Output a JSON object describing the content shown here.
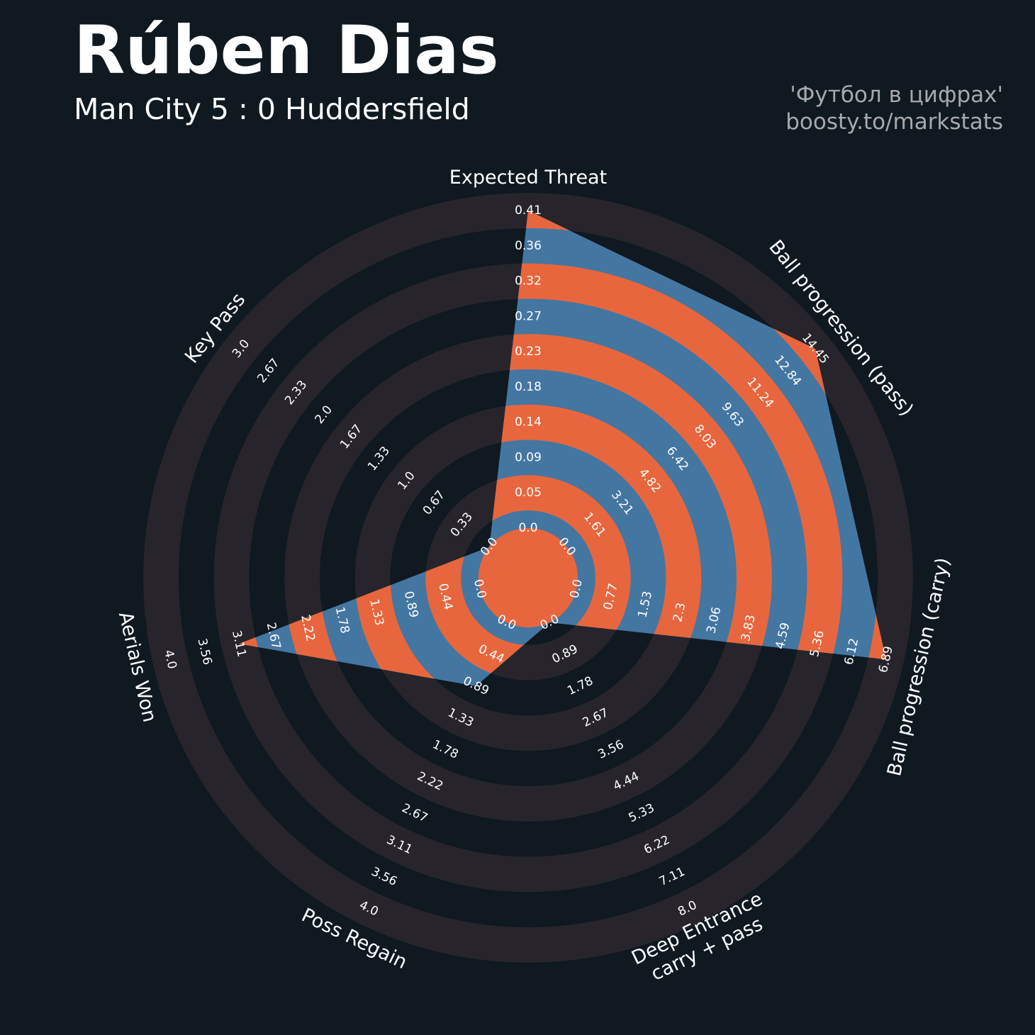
{
  "title": "Rúben Dias",
  "subtitle": "Man City 5 : 0 Huddersfield",
  "credit": {
    "line1": "'Футбол в цифрах'",
    "line2": "boosty.to/markstats"
  },
  "colors": {
    "background": "#101820",
    "ring_band": "#27252b",
    "fill_primary": "#4476a2",
    "fill_secondary": "#e8663d",
    "label_text": "#ffffff",
    "credit_text": "#a7a9ac"
  },
  "chart_data": {
    "type": "radar",
    "title": "Rúben Dias",
    "subtitle": "Man City 5 : 0 Huddersfield",
    "grid": "alternating concentric bands",
    "axes": [
      {
        "label": "Expected Threat",
        "value": 0.41,
        "ticks": [
          "0.0",
          "0.05",
          "0.09",
          "0.14",
          "0.18",
          "0.23",
          "0.27",
          "0.32",
          "0.36",
          "0.41"
        ]
      },
      {
        "label": "Ball progression (pass)",
        "value": 14.45,
        "ticks": [
          "0.0",
          "1.61",
          "3.21",
          "4.82",
          "6.42",
          "8.03",
          "9.63",
          "11.24",
          "12.84",
          "14.45"
        ]
      },
      {
        "label": "Ball progression (carry)",
        "value": 6.89,
        "ticks": [
          "0.0",
          "0.77",
          "1.53",
          "2.3",
          "3.06",
          "3.83",
          "4.59",
          "5.36",
          "6.12",
          "6.89"
        ]
      },
      {
        "label": "Deep Entrance\ncarry + pass",
        "value": 0.0,
        "ticks": [
          "0.0",
          "0.89",
          "1.78",
          "2.67",
          "3.56",
          "4.44",
          "5.33",
          "6.22",
          "7.11",
          "8.0"
        ]
      },
      {
        "label": "Poss Regain",
        "value": 0.89,
        "ticks": [
          "0.0",
          "0.44",
          "0.89",
          "1.33",
          "1.78",
          "2.22",
          "2.67",
          "3.11",
          "3.56",
          "4.0"
        ]
      },
      {
        "label": "Aerials Won",
        "value": 3.11,
        "ticks": [
          "0.0",
          "0.44",
          "0.89",
          "1.33",
          "1.78",
          "2.22",
          "2.67",
          "3.11",
          "3.56",
          "4.0"
        ]
      },
      {
        "label": "Key Pass",
        "value": 0.0,
        "ticks": [
          "0.0",
          "0.33",
          "0.67",
          "1.0",
          "1.33",
          "1.67",
          "2.0",
          "2.33",
          "2.67",
          "3.0"
        ]
      }
    ]
  }
}
